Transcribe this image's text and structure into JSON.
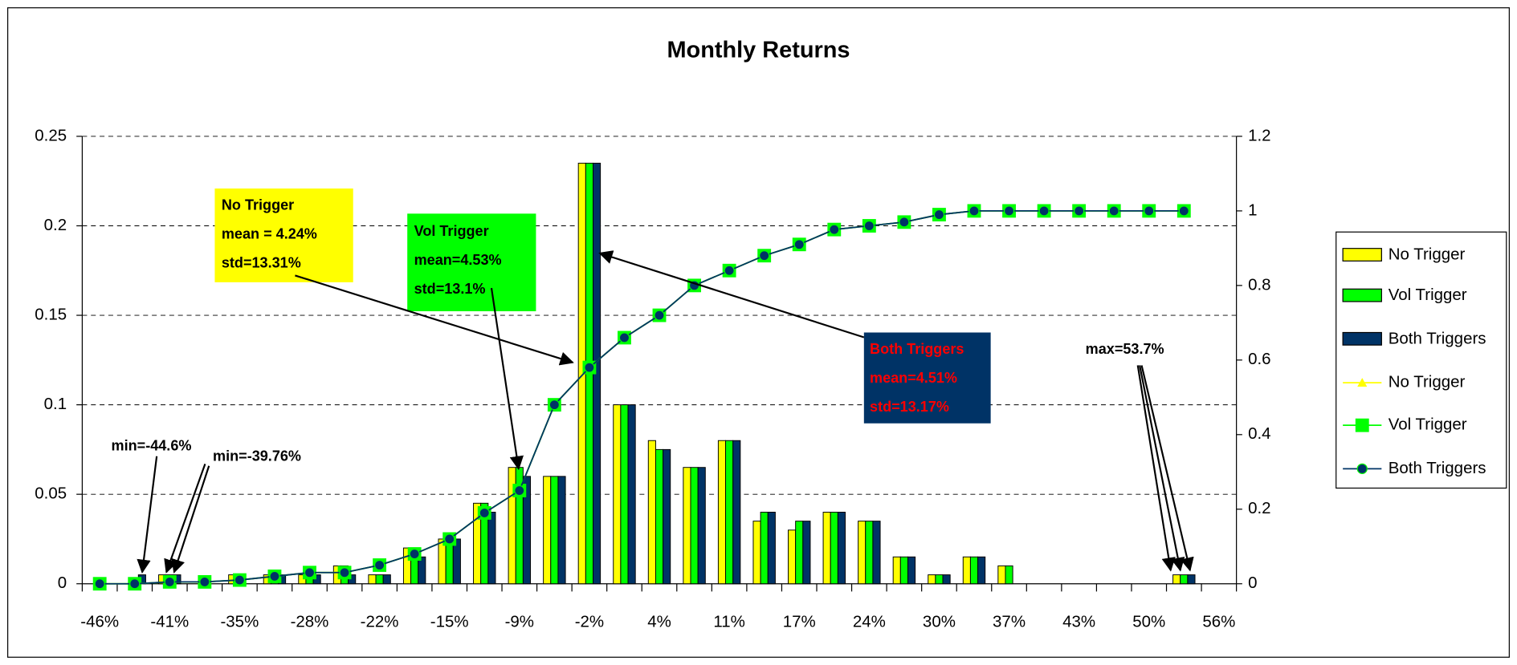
{
  "chart_data": {
    "type": "bar",
    "title": "Monthly Returns",
    "categories": [
      "-46%",
      null,
      "-41%",
      null,
      "-35%",
      null,
      "-28%",
      null,
      "-22%",
      null,
      "-15%",
      null,
      "-9%",
      null,
      "-2%",
      null,
      "4%",
      null,
      "11%",
      null,
      "17%",
      null,
      "24%",
      null,
      "30%",
      null,
      "37%",
      null,
      "43%",
      null,
      "50%",
      null,
      "56%"
    ],
    "series": [
      {
        "name": "No Trigger",
        "type": "bar",
        "color": "#ffff00",
        "values": [
          0,
          0,
          0.005,
          0,
          0.005,
          0.005,
          0.005,
          0.01,
          0.005,
          0.02,
          0.025,
          0.045,
          0.065,
          0.06,
          0.235,
          0.1,
          0.08,
          0.065,
          0.08,
          0.035,
          0.03,
          0.04,
          0.035,
          0.015,
          0.005,
          0.015,
          0.01,
          0,
          0,
          0,
          0,
          0.005,
          0
        ]
      },
      {
        "name": "Vol Trigger",
        "type": "bar",
        "color": "#00ff00",
        "values": [
          0,
          0,
          0.005,
          0,
          0.005,
          0.005,
          0.005,
          0.01,
          0.005,
          0.02,
          0.025,
          0.045,
          0.065,
          0.06,
          0.235,
          0.1,
          0.075,
          0.065,
          0.08,
          0.04,
          0.035,
          0.04,
          0.035,
          0.015,
          0.005,
          0.015,
          0.01,
          0,
          0,
          0,
          0,
          0.005,
          0
        ]
      },
      {
        "name": "Both Triggers",
        "type": "bar",
        "color": "#003366",
        "values": [
          0,
          0.005,
          0.005,
          0,
          0,
          0.005,
          0.005,
          0.005,
          0.005,
          0.015,
          0.025,
          0.04,
          0.06,
          0.06,
          0.235,
          0.1,
          0.075,
          0.065,
          0.08,
          0.04,
          0.035,
          0.04,
          0.035,
          0.015,
          0.005,
          0.015,
          0,
          0,
          0,
          0,
          0,
          0.005,
          0
        ]
      },
      {
        "name": "No Trigger",
        "type": "line",
        "marker": "triangle",
        "axis": "y2",
        "color": "#ffff00",
        "values": [
          0,
          0,
          0.005,
          0.005,
          0.01,
          0.02,
          0.03,
          0.03,
          0.05,
          0.08,
          0.12,
          0.19,
          0.25,
          0.48,
          0.58,
          0.66,
          0.72,
          0.8,
          0.84,
          0.88,
          0.91,
          0.95,
          0.96,
          0.97,
          0.99,
          1,
          1,
          1,
          1,
          1,
          1,
          1,
          null
        ]
      },
      {
        "name": "Vol Trigger",
        "type": "line",
        "marker": "square",
        "axis": "y2",
        "color": "#00ff00",
        "values": [
          0,
          0,
          0.005,
          0.005,
          0.01,
          0.02,
          0.03,
          0.03,
          0.05,
          0.08,
          0.12,
          0.19,
          0.25,
          0.48,
          0.58,
          0.66,
          0.72,
          0.8,
          0.84,
          0.88,
          0.91,
          0.95,
          0.96,
          0.97,
          0.99,
          1,
          1,
          1,
          1,
          1,
          1,
          1,
          null
        ]
      },
      {
        "name": "Both Triggers",
        "type": "line",
        "marker": "circle",
        "axis": "y2",
        "color": "#003366",
        "values": [
          0,
          0,
          0.005,
          0.005,
          0.01,
          0.02,
          0.03,
          0.03,
          0.05,
          0.08,
          0.12,
          0.19,
          0.25,
          0.48,
          0.58,
          0.66,
          0.72,
          0.8,
          0.84,
          0.88,
          0.91,
          0.95,
          0.96,
          0.97,
          0.99,
          1,
          1,
          1,
          1,
          1,
          1,
          1,
          null
        ]
      }
    ],
    "ylim": [
      0,
      0.25
    ],
    "yticks": [
      0,
      0.05,
      0.1,
      0.15,
      0.2,
      0.25
    ],
    "y2lim": [
      0,
      1.2
    ],
    "y2ticks": [
      0,
      0.2,
      0.4,
      0.6,
      0.8,
      1,
      1.2
    ],
    "grid": true,
    "legend": "right",
    "annotations": [
      {
        "lines": [
          "No Trigger",
          "mean = 4.24%",
          "std=13.31%"
        ],
        "background": "#ffff00",
        "color": "#000000"
      },
      {
        "lines": [
          "Vol Trigger",
          "mean=4.53%",
          "std=13.1%"
        ],
        "background": "#00ff00",
        "color": "#000000"
      },
      {
        "lines": [
          "Both Triggers",
          "mean=4.51%",
          "std=13.17%"
        ],
        "background": "#003366",
        "color": "#ff0000"
      },
      {
        "lines": [
          "min=-44.6%"
        ],
        "color": "#000000"
      },
      {
        "lines": [
          "min=-39.76%"
        ],
        "color": "#000000"
      },
      {
        "lines": [
          "max=53.7%"
        ],
        "color": "#000000"
      }
    ]
  }
}
